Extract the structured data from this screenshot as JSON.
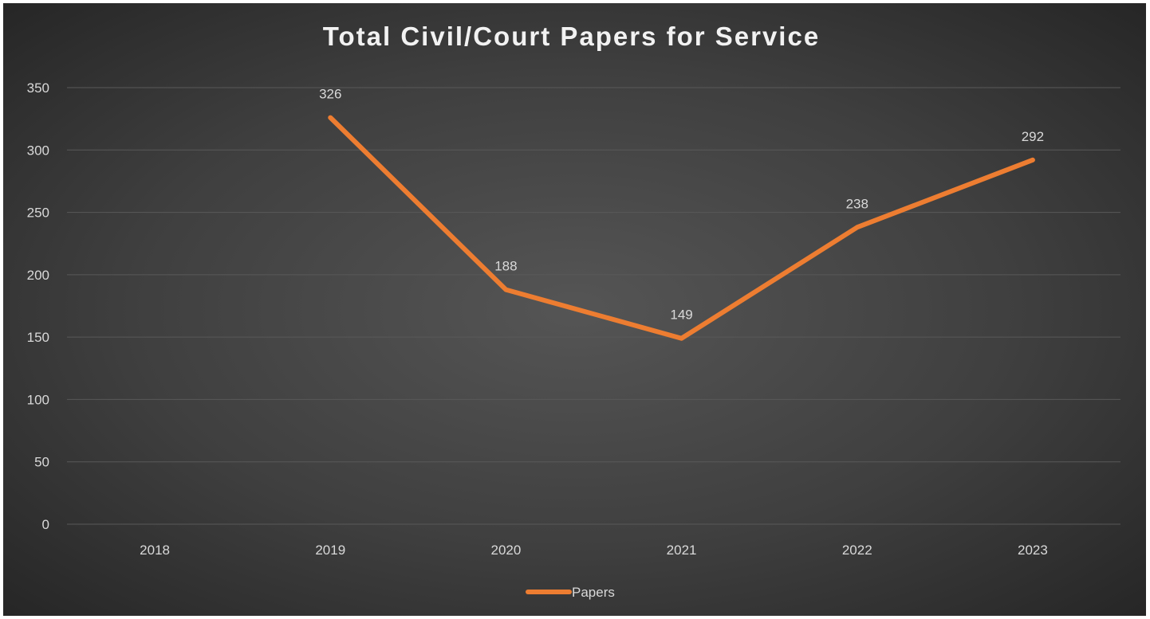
{
  "chart_data": {
    "type": "line",
    "title": "Total Civil/Court Papers for Service",
    "xlabel": "",
    "ylabel": "",
    "categories": [
      "2018",
      "2019",
      "2020",
      "2021",
      "2022",
      "2023"
    ],
    "series": [
      {
        "name": "Papers",
        "values": [
          null,
          326,
          188,
          149,
          238,
          292
        ],
        "color": "#ed7d31"
      }
    ],
    "data_labels": [
      "",
      "326",
      "188",
      "149",
      "238",
      "292"
    ],
    "ylim": [
      0,
      350
    ],
    "yticks": [
      0,
      50,
      100,
      150,
      200,
      250,
      300,
      350
    ],
    "ytick_labels": [
      "0",
      "50",
      "100",
      "150",
      "200",
      "250",
      "300",
      "350"
    ],
    "grid": true,
    "legend_position": "bottom",
    "background_color": "#404040",
    "gridline_color": "#595959",
    "text_color": "#d9d9d9"
  }
}
